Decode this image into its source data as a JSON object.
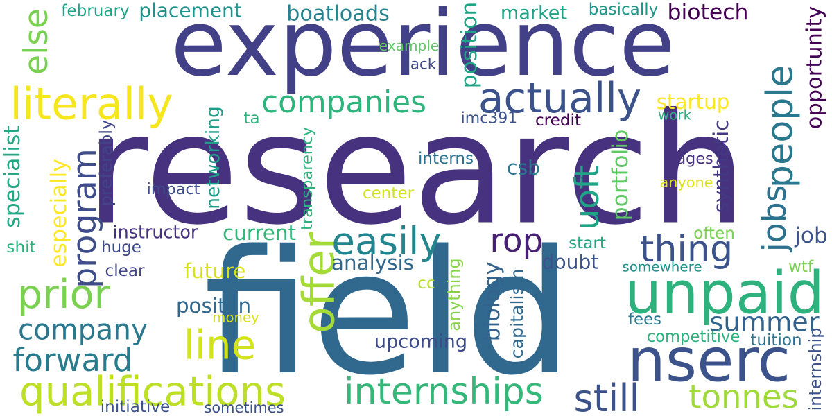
{
  "words": [
    {
      "text": "research",
      "color": "#46327e"
    },
    {
      "text": "field",
      "color": "#31688e"
    },
    {
      "text": "experience",
      "color": "#424086"
    },
    {
      "text": "unpaid",
      "color": "#2db27d"
    },
    {
      "text": "nserc",
      "color": "#3b528b"
    },
    {
      "text": "actually",
      "color": "#3b528b"
    },
    {
      "text": "companies",
      "color": "#2fb47c"
    },
    {
      "text": "literally",
      "color": "#f5e61e"
    },
    {
      "text": "program",
      "color": "#3e4c8a"
    },
    {
      "text": "easily",
      "color": "#25858e"
    },
    {
      "text": "thing",
      "color": "#3b528b"
    },
    {
      "text": "people",
      "color": "#2a788e"
    },
    {
      "text": "jobs",
      "color": "#2c728e"
    },
    {
      "text": "prior",
      "color": "#7ad151"
    },
    {
      "text": "company",
      "color": "#2a788e"
    },
    {
      "text": "forward",
      "color": "#287c8e"
    },
    {
      "text": "qualifications",
      "color": "#bddf26"
    },
    {
      "text": "internships",
      "color": "#35b779"
    },
    {
      "text": "still",
      "color": "#3b528b"
    },
    {
      "text": "tonnes",
      "color": "#9fda3a"
    },
    {
      "text": "summer",
      "color": "#33638d"
    },
    {
      "text": "line",
      "color": "#d2e21b"
    },
    {
      "text": "offer",
      "color": "#a5db36"
    },
    {
      "text": "uoft",
      "color": "#20a486"
    },
    {
      "text": "rop",
      "color": "#482173"
    },
    {
      "text": "else",
      "color": "#7ad151"
    },
    {
      "text": "placement",
      "color": "#21918c"
    },
    {
      "text": "boatloads",
      "color": "#26828e"
    },
    {
      "text": "market",
      "color": "#20a386"
    },
    {
      "text": "biotech",
      "color": "#440154"
    },
    {
      "text": "opportunity",
      "color": "#440154"
    },
    {
      "text": "february",
      "color": "#20a486"
    },
    {
      "text": "basically",
      "color": "#1f988b"
    },
    {
      "text": "example",
      "color": "#5ec962"
    },
    {
      "text": "lack",
      "color": "#3e4989"
    },
    {
      "text": "position",
      "color": "#20a486"
    },
    {
      "text": "startup",
      "color": "#fde725"
    },
    {
      "text": "work",
      "color": "#2db27d"
    },
    {
      "text": "credit",
      "color": "#440154"
    },
    {
      "text": "imc391",
      "color": "#3b528b"
    },
    {
      "text": "ta",
      "color": "#2db27d"
    },
    {
      "text": "specialist",
      "color": "#22a884"
    },
    {
      "text": "networking",
      "color": "#1f9e89"
    },
    {
      "text": "transparency",
      "color": "#2db27d"
    },
    {
      "text": "preferably",
      "color": "#414487"
    },
    {
      "text": "especially",
      "color": "#fde725"
    },
    {
      "text": "impact",
      "color": "#3e4c8a"
    },
    {
      "text": "center",
      "color": "#d2e21b"
    },
    {
      "text": "interns",
      "color": "#2c728e"
    },
    {
      "text": "csb",
      "color": "#2a788e"
    },
    {
      "text": "portfolio",
      "color": "#5ec962"
    },
    {
      "text": "synthetic",
      "color": "#443983"
    },
    {
      "text": "pages",
      "color": "#46327e"
    },
    {
      "text": "anyone",
      "color": "#dde318"
    },
    {
      "text": "instructor",
      "color": "#46327e"
    },
    {
      "text": "current",
      "color": "#35b779"
    },
    {
      "text": "often",
      "color": "#7ad151"
    },
    {
      "text": "job",
      "color": "#3b528b"
    },
    {
      "text": "shit",
      "color": "#2db27d"
    },
    {
      "text": "huge",
      "color": "#3e4989"
    },
    {
      "text": "start",
      "color": "#22a884"
    },
    {
      "text": "analysis",
      "color": "#31688e"
    },
    {
      "text": "doubt",
      "color": "#3b528b"
    },
    {
      "text": "somewhere",
      "color": "#21918c"
    },
    {
      "text": "wtf",
      "color": "#7ad151"
    },
    {
      "text": "clear",
      "color": "#414487"
    },
    {
      "text": "future",
      "color": "#d8e219"
    },
    {
      "text": "cc",
      "color": "#b5de2b"
    },
    {
      "text": "anything",
      "color": "#86d549"
    },
    {
      "text": "biology",
      "color": "#33638d"
    },
    {
      "text": "capitalism",
      "color": "#31688e"
    },
    {
      "text": "positon",
      "color": "#31688e"
    },
    {
      "text": "money",
      "color": "#d8e219"
    },
    {
      "text": "fees",
      "color": "#2a788e"
    },
    {
      "text": "competitive",
      "color": "#2db27d"
    },
    {
      "text": "tuition",
      "color": "#2c728e"
    },
    {
      "text": "internship",
      "color": "#3b528b"
    },
    {
      "text": "upcoming",
      "color": "#3e4c8a"
    },
    {
      "text": "initiative",
      "color": "#3b528b"
    },
    {
      "text": "sometimes",
      "color": "#3b528b"
    }
  ]
}
